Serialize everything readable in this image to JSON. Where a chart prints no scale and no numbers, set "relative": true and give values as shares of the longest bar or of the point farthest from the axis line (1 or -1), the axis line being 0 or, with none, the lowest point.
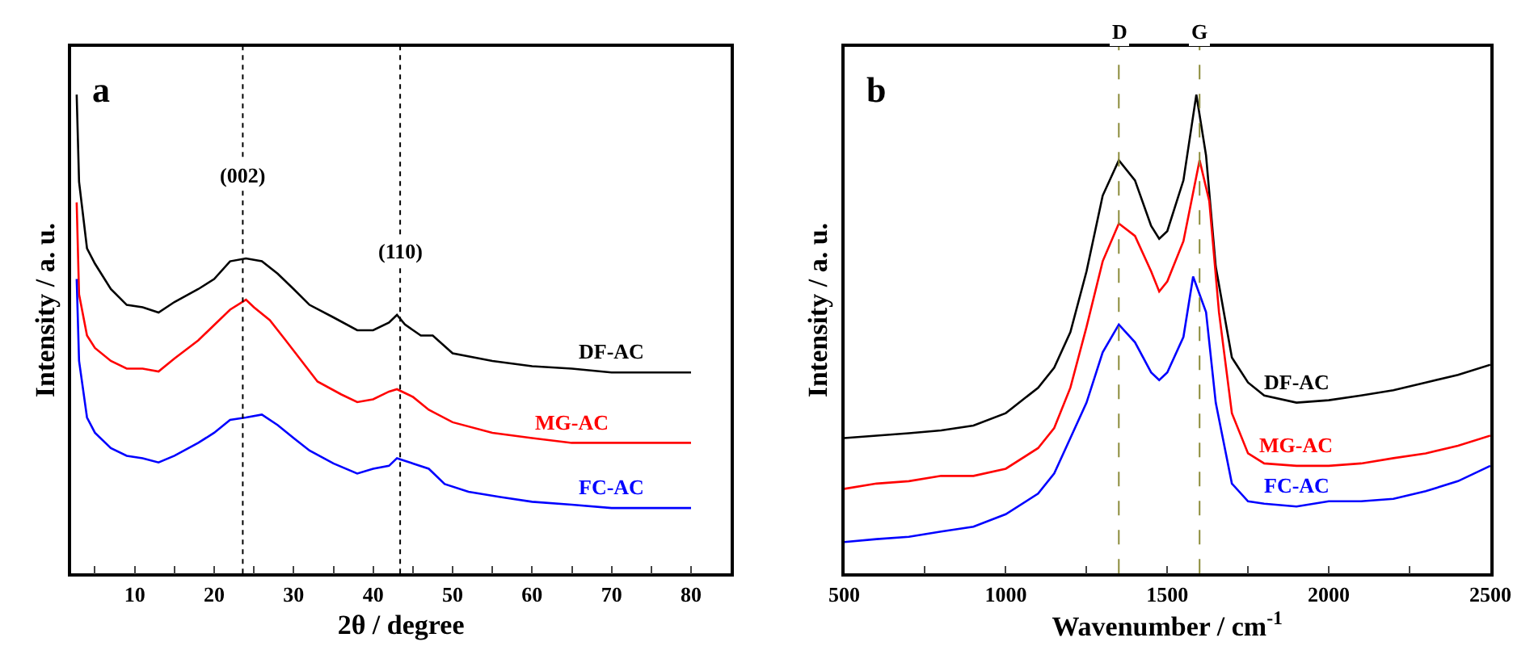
{
  "chart_data": [
    {
      "type": "line",
      "title": "a",
      "xlabel": "2θ / degree",
      "ylabel": "Intensity / a. u.",
      "relative": true,
      "xlim": [
        2,
        85
      ],
      "xticks": [
        {
          "value": 5,
          "label": null
        },
        10,
        {
          "value": 15,
          "label": null
        },
        20,
        {
          "value": 25,
          "label": null
        },
        30,
        {
          "value": 35,
          "label": null
        },
        40,
        {
          "value": 45,
          "label": null
        },
        50,
        {
          "value": 55,
          "label": null
        },
        60,
        {
          "value": 65,
          "label": null
        },
        70,
        {
          "value": 75,
          "label": null
        },
        80
      ],
      "marker": "none",
      "line_style": "solid",
      "annotations": [
        {
          "text": "(002)",
          "x": 23.6,
          "y": 0.8
        },
        {
          "text": "(110)",
          "x": 43.4,
          "y": 0.64
        }
      ],
      "series": [
        {
          "name": "DF-AC",
          "color": "#000000",
          "x": [
            2.7,
            3,
            4,
            5,
            7,
            9,
            11,
            13,
            15,
            18,
            20,
            22,
            24,
            26,
            28,
            30,
            32,
            35,
            38,
            40,
            42,
            43,
            44,
            46,
            47.5,
            50,
            55,
            60,
            65,
            70,
            75,
            80
          ],
          "values": [
            1.0,
            0.818,
            0.679,
            0.647,
            0.594,
            0.561,
            0.556,
            0.545,
            0.567,
            0.594,
            0.615,
            0.652,
            0.658,
            0.652,
            0.626,
            0.594,
            0.561,
            0.535,
            0.508,
            0.508,
            0.524,
            0.54,
            0.52,
            0.497,
            0.497,
            0.46,
            0.444,
            0.433,
            0.428,
            0.42,
            0.42,
            0.42
          ]
        },
        {
          "name": "MG-AC",
          "color": "#ff0000",
          "x": [
            2.7,
            3,
            4,
            5,
            7,
            9,
            11,
            13,
            15,
            18,
            20,
            22,
            24,
            25,
            27,
            29,
            31,
            33,
            36,
            38,
            40,
            42,
            43,
            45,
            47,
            50,
            55,
            60,
            65,
            70,
            80
          ],
          "values": [
            0.775,
            0.583,
            0.497,
            0.471,
            0.444,
            0.428,
            0.428,
            0.422,
            0.449,
            0.487,
            0.519,
            0.551,
            0.572,
            0.556,
            0.529,
            0.487,
            0.444,
            0.401,
            0.374,
            0.358,
            0.364,
            0.38,
            0.385,
            0.369,
            0.342,
            0.316,
            0.294,
            0.283,
            0.273,
            0.273,
            0.273
          ]
        },
        {
          "name": "FC-AC",
          "color": "#0000ff",
          "x": [
            2.7,
            3,
            4,
            5,
            7,
            9,
            11,
            13,
            15,
            18,
            20,
            22,
            24,
            26,
            28,
            30,
            32,
            35,
            38,
            40,
            42,
            43,
            45,
            47,
            49,
            52,
            56,
            60,
            65,
            70,
            80
          ],
          "values": [
            0.615,
            0.444,
            0.326,
            0.294,
            0.262,
            0.246,
            0.241,
            0.232,
            0.246,
            0.273,
            0.294,
            0.321,
            0.326,
            0.332,
            0.31,
            0.283,
            0.257,
            0.23,
            0.209,
            0.219,
            0.225,
            0.241,
            0.23,
            0.219,
            0.187,
            0.171,
            0.16,
            0.15,
            0.144,
            0.137,
            0.137
          ]
        }
      ],
      "ref_lines": [
        {
          "axis": "x",
          "value": 23.6,
          "color": "#000000",
          "line_style": "dotted"
        },
        {
          "axis": "x",
          "value": 43.4,
          "color": "#000000",
          "line_style": "dotted"
        }
      ]
    },
    {
      "type": "line",
      "title": "b",
      "xlabel": "Wavenumber / cm$^{-1}$",
      "ylabel": "Intensity / a. u.",
      "relative": true,
      "xlim": [
        500,
        2500
      ],
      "xticks": [
        500,
        {
          "value": 750,
          "label": null
        },
        1000,
        {
          "value": 1250,
          "label": null
        },
        1500,
        {
          "value": 1750,
          "label": null
        },
        2000,
        {
          "value": 2250,
          "label": null
        },
        2500
      ],
      "marker": "none",
      "line_style": "solid",
      "series": [
        {
          "name": "DF-AC",
          "color": "#000000",
          "x": [
            500,
            600,
            700,
            800,
            900,
            1000,
            1100,
            1150,
            1200,
            1250,
            1300,
            1350,
            1400,
            1450,
            1475,
            1500,
            1550,
            1590,
            1620,
            1650,
            1700,
            1750,
            1800,
            1900,
            2000,
            2100,
            2200,
            2300,
            2400,
            2500
          ],
          "values": [
            0.283,
            0.288,
            0.293,
            0.299,
            0.309,
            0.335,
            0.388,
            0.43,
            0.504,
            0.631,
            0.789,
            0.863,
            0.821,
            0.726,
            0.699,
            0.715,
            0.821,
            1.0,
            0.873,
            0.641,
            0.451,
            0.399,
            0.372,
            0.357,
            0.362,
            0.372,
            0.383,
            0.399,
            0.415,
            0.436
          ]
        },
        {
          "name": "MG-AC",
          "color": "#ff0000",
          "x": [
            500,
            600,
            700,
            800,
            900,
            1000,
            1100,
            1150,
            1200,
            1250,
            1300,
            1350,
            1400,
            1450,
            1475,
            1500,
            1550,
            1600,
            1630,
            1660,
            1700,
            1750,
            1800,
            1900,
            2000,
            2100,
            2200,
            2300,
            2400,
            2500
          ],
          "values": [
            0.177,
            0.188,
            0.193,
            0.204,
            0.204,
            0.219,
            0.262,
            0.304,
            0.388,
            0.515,
            0.652,
            0.731,
            0.705,
            0.631,
            0.589,
            0.61,
            0.694,
            0.863,
            0.778,
            0.546,
            0.335,
            0.251,
            0.23,
            0.225,
            0.225,
            0.23,
            0.241,
            0.251,
            0.267,
            0.288
          ]
        },
        {
          "name": "FC-AC",
          "color": "#0000ff",
          "x": [
            500,
            600,
            700,
            800,
            900,
            1000,
            1100,
            1150,
            1200,
            1250,
            1300,
            1350,
            1400,
            1450,
            1475,
            1500,
            1550,
            1580,
            1620,
            1650,
            1700,
            1750,
            1800,
            1900,
            2000,
            2100,
            2200,
            2300,
            2400,
            2500
          ],
          "values": [
            0.066,
            0.072,
            0.077,
            0.088,
            0.098,
            0.124,
            0.167,
            0.209,
            0.283,
            0.357,
            0.462,
            0.52,
            0.483,
            0.42,
            0.404,
            0.42,
            0.494,
            0.62,
            0.546,
            0.357,
            0.188,
            0.151,
            0.146,
            0.14,
            0.151,
            0.151,
            0.156,
            0.172,
            0.193,
            0.225
          ]
        }
      ],
      "ref_lines": [
        {
          "axis": "x",
          "value": 1350,
          "label": "D",
          "color": "#8b8b3a",
          "line_style": "dashed"
        },
        {
          "axis": "x",
          "value": 1600,
          "label": "G",
          "color": "#8b8b3a",
          "line_style": "dashed"
        }
      ]
    }
  ]
}
